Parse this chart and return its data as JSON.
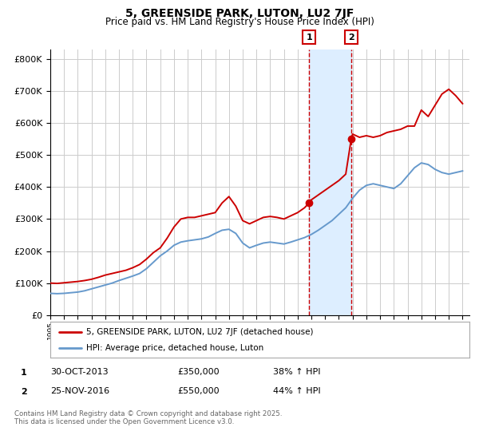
{
  "title": "5, GREENSIDE PARK, LUTON, LU2 7JF",
  "subtitle": "Price paid vs. HM Land Registry's House Price Index (HPI)",
  "legend_line1": "5, GREENSIDE PARK, LUTON, LU2 7JF (detached house)",
  "legend_line2": "HPI: Average price, detached house, Luton",
  "transaction1_date": "30-OCT-2013",
  "transaction1_price": "£350,000",
  "transaction1_hpi": "38% ↑ HPI",
  "transaction1_year": 2013.83,
  "transaction1_value": 350000,
  "transaction2_date": "25-NOV-2016",
  "transaction2_price": "£550,000",
  "transaction2_hpi": "44% ↑ HPI",
  "transaction2_year": 2016.9,
  "transaction2_value": 550000,
  "red_color": "#cc0000",
  "blue_color": "#6699cc",
  "shade_color": "#ddeeff",
  "grid_color": "#cccccc",
  "background_color": "#ffffff",
  "ylim": [
    0,
    830000
  ],
  "xlim": [
    1995,
    2025.5
  ],
  "footnote": "Contains HM Land Registry data © Crown copyright and database right 2025.\nThis data is licensed under the Open Government Licence v3.0.",
  "hpi_x": [
    1995.0,
    1995.5,
    1996.0,
    1996.5,
    1997.0,
    1997.5,
    1998.0,
    1998.5,
    1999.0,
    1999.5,
    2000.0,
    2000.5,
    2001.0,
    2001.5,
    2002.0,
    2002.5,
    2003.0,
    2003.5,
    2004.0,
    2004.5,
    2005.0,
    2005.5,
    2006.0,
    2006.5,
    2007.0,
    2007.5,
    2008.0,
    2008.5,
    2009.0,
    2009.5,
    2010.0,
    2010.5,
    2011.0,
    2011.5,
    2012.0,
    2012.5,
    2013.0,
    2013.5,
    2014.0,
    2014.5,
    2015.0,
    2015.5,
    2016.0,
    2016.5,
    2017.0,
    2017.5,
    2018.0,
    2018.5,
    2019.0,
    2019.5,
    2020.0,
    2020.5,
    2021.0,
    2021.5,
    2022.0,
    2022.5,
    2023.0,
    2023.5,
    2024.0,
    2024.5,
    2025.0
  ],
  "hpi_y": [
    68000,
    67000,
    68000,
    70000,
    72000,
    76000,
    82000,
    88000,
    94000,
    100000,
    108000,
    115000,
    122000,
    130000,
    145000,
    165000,
    185000,
    200000,
    218000,
    228000,
    232000,
    235000,
    238000,
    244000,
    255000,
    265000,
    268000,
    255000,
    225000,
    210000,
    218000,
    225000,
    228000,
    225000,
    222000,
    228000,
    235000,
    242000,
    252000,
    265000,
    280000,
    295000,
    315000,
    335000,
    365000,
    390000,
    405000,
    410000,
    405000,
    400000,
    395000,
    410000,
    435000,
    460000,
    475000,
    470000,
    455000,
    445000,
    440000,
    445000,
    450000
  ],
  "prop_x": [
    1995.0,
    1995.5,
    1996.0,
    1996.5,
    1997.0,
    1997.5,
    1998.0,
    1998.5,
    1999.0,
    1999.5,
    2000.0,
    2000.5,
    2001.0,
    2001.5,
    2002.0,
    2002.5,
    2003.0,
    2003.5,
    2004.0,
    2004.5,
    2005.0,
    2005.5,
    2006.0,
    2006.5,
    2007.0,
    2007.5,
    2008.0,
    2008.5,
    2009.0,
    2009.5,
    2010.0,
    2010.5,
    2011.0,
    2011.5,
    2012.0,
    2012.5,
    2013.0,
    2013.5,
    2013.83,
    2014.0,
    2014.5,
    2015.0,
    2015.5,
    2016.0,
    2016.5,
    2016.9,
    2017.0,
    2017.5,
    2018.0,
    2018.5,
    2019.0,
    2019.5,
    2020.0,
    2020.5,
    2021.0,
    2021.5,
    2022.0,
    2022.5,
    2023.0,
    2023.5,
    2024.0,
    2024.5,
    2025.0
  ],
  "prop_y": [
    100000,
    99000,
    101000,
    103000,
    105000,
    108000,
    112000,
    118000,
    125000,
    130000,
    135000,
    140000,
    148000,
    158000,
    175000,
    195000,
    210000,
    240000,
    275000,
    300000,
    305000,
    305000,
    310000,
    315000,
    320000,
    350000,
    370000,
    340000,
    295000,
    285000,
    295000,
    305000,
    308000,
    305000,
    300000,
    310000,
    320000,
    335000,
    350000,
    360000,
    375000,
    390000,
    405000,
    420000,
    440000,
    550000,
    565000,
    555000,
    560000,
    555000,
    560000,
    570000,
    575000,
    580000,
    590000,
    590000,
    640000,
    620000,
    655000,
    690000,
    705000,
    685000,
    660000
  ]
}
